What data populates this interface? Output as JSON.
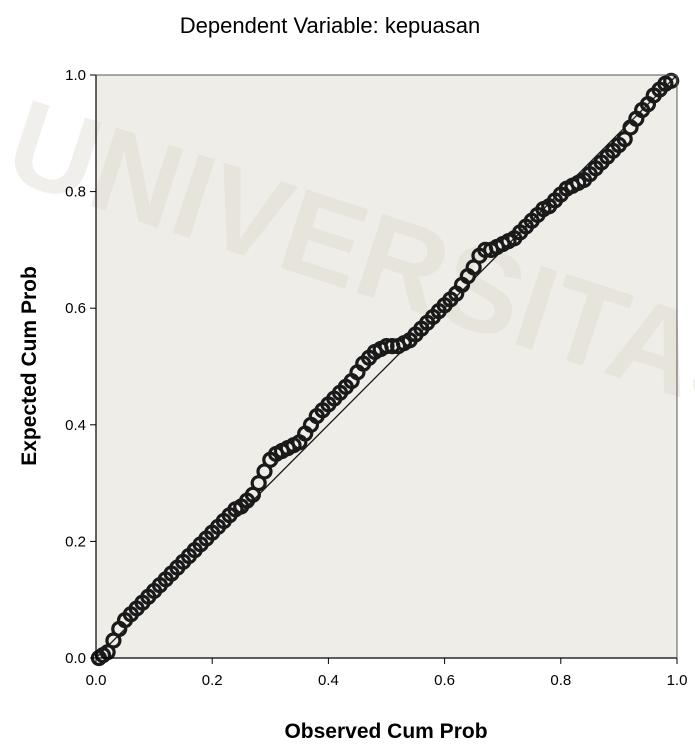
{
  "chart_data": {
    "type": "scatter",
    "title": "Dependent Variable: kepuasan",
    "xlabel": "Observed Cum Prob",
    "ylabel": "Expected Cum Prob",
    "xlim": [
      0,
      1
    ],
    "ylim": [
      0,
      1
    ],
    "x_ticks": [
      "0.0",
      "0.2",
      "0.4",
      "0.6",
      "0.8",
      "1.0"
    ],
    "y_ticks": [
      "0.0",
      "0.2",
      "0.4",
      "0.6",
      "0.8",
      "1.0"
    ],
    "grid": false,
    "reference_line": {
      "from": [
        0,
        0
      ],
      "to": [
        1,
        1
      ]
    },
    "points": {
      "x": [
        0.005,
        0.012,
        0.02,
        0.03,
        0.04,
        0.05,
        0.06,
        0.07,
        0.08,
        0.09,
        0.1,
        0.11,
        0.12,
        0.13,
        0.14,
        0.15,
        0.16,
        0.17,
        0.18,
        0.19,
        0.2,
        0.21,
        0.22,
        0.23,
        0.24,
        0.25,
        0.26,
        0.27,
        0.28,
        0.29,
        0.3,
        0.31,
        0.32,
        0.33,
        0.34,
        0.35,
        0.36,
        0.37,
        0.38,
        0.39,
        0.4,
        0.41,
        0.42,
        0.43,
        0.44,
        0.45,
        0.46,
        0.47,
        0.48,
        0.49,
        0.5,
        0.51,
        0.52,
        0.53,
        0.54,
        0.55,
        0.56,
        0.57,
        0.58,
        0.59,
        0.6,
        0.61,
        0.62,
        0.63,
        0.64,
        0.65,
        0.66,
        0.67,
        0.68,
        0.69,
        0.7,
        0.71,
        0.72,
        0.73,
        0.74,
        0.75,
        0.76,
        0.77,
        0.78,
        0.79,
        0.8,
        0.81,
        0.82,
        0.83,
        0.84,
        0.85,
        0.86,
        0.87,
        0.88,
        0.89,
        0.9,
        0.91,
        0.92,
        0.93,
        0.94,
        0.95,
        0.96,
        0.97,
        0.98,
        0.99
      ],
      "y": [
        0.0,
        0.005,
        0.01,
        0.03,
        0.05,
        0.065,
        0.075,
        0.085,
        0.095,
        0.105,
        0.115,
        0.125,
        0.135,
        0.145,
        0.155,
        0.165,
        0.175,
        0.185,
        0.195,
        0.205,
        0.215,
        0.225,
        0.235,
        0.245,
        0.255,
        0.26,
        0.27,
        0.28,
        0.3,
        0.32,
        0.34,
        0.35,
        0.355,
        0.36,
        0.365,
        0.37,
        0.385,
        0.4,
        0.415,
        0.425,
        0.435,
        0.445,
        0.455,
        0.465,
        0.475,
        0.49,
        0.505,
        0.515,
        0.525,
        0.53,
        0.535,
        0.535,
        0.535,
        0.54,
        0.545,
        0.555,
        0.565,
        0.575,
        0.585,
        0.595,
        0.605,
        0.615,
        0.625,
        0.64,
        0.655,
        0.67,
        0.69,
        0.7,
        0.7,
        0.705,
        0.71,
        0.715,
        0.72,
        0.73,
        0.74,
        0.75,
        0.76,
        0.77,
        0.775,
        0.785,
        0.795,
        0.805,
        0.81,
        0.815,
        0.82,
        0.83,
        0.84,
        0.85,
        0.86,
        0.87,
        0.88,
        0.89,
        0.91,
        0.925,
        0.94,
        0.95,
        0.965,
        0.975,
        0.985,
        0.99
      ]
    }
  },
  "watermark": {
    "text": "UNIVERSITAS"
  },
  "colors": {
    "plot_background": "#efede7",
    "marker": "#1a1a1a",
    "reference_line": "#1a1a1a",
    "watermark": "#d9d4c8"
  }
}
